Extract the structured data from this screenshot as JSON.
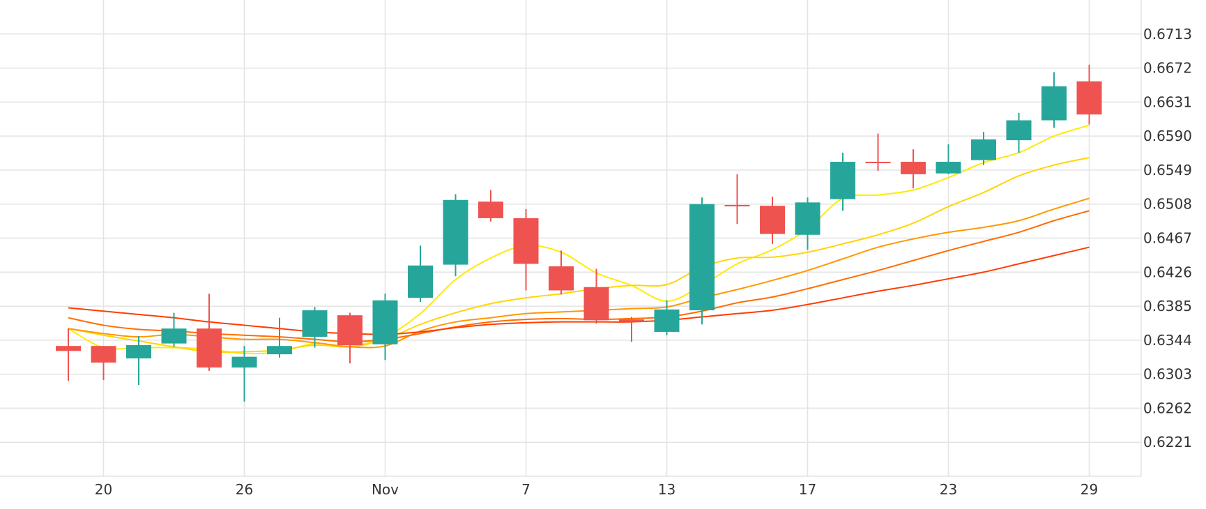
{
  "chart_data": {
    "type": "candlestick",
    "title": "",
    "xlabel": "",
    "ylabel": "",
    "ylim": [
      0.618,
      0.6754
    ],
    "grid": true,
    "y_ticks": [
      0.6221,
      0.6262,
      0.6303,
      0.6344,
      0.6385,
      0.6426,
      0.6467,
      0.6508,
      0.6549,
      0.659,
      0.6631,
      0.6672,
      0.6713
    ],
    "y_tick_labels": [
      "0.6221",
      "0.6262",
      "0.6303",
      "0.6344",
      "0.6385",
      "0.6426",
      "0.6467",
      "0.6508",
      "0.6549",
      "0.6590",
      "0.6631",
      "0.6672",
      "0.6713"
    ],
    "x_ticks": [
      {
        "label": "20",
        "index": 1
      },
      {
        "label": "26",
        "index": 5
      },
      {
        "label": "Nov",
        "index": 9
      },
      {
        "label": "7",
        "index": 13
      },
      {
        "label": "13",
        "index": 17
      },
      {
        "label": "17",
        "index": 21
      },
      {
        "label": "23",
        "index": 25
      },
      {
        "label": "29",
        "index": 29
      }
    ],
    "colors": {
      "up": "#26a69a",
      "down": "#ef5350",
      "grid": "#e3e3e3",
      "text": "#333333"
    },
    "candles": [
      {
        "o": 0.6337,
        "h": 0.6358,
        "l": 0.6295,
        "c": 0.6331
      },
      {
        "o": 0.6337,
        "h": 0.6337,
        "l": 0.6296,
        "c": 0.6317
      },
      {
        "o": 0.6322,
        "h": 0.6349,
        "l": 0.629,
        "c": 0.6338
      },
      {
        "o": 0.634,
        "h": 0.6377,
        "l": 0.6336,
        "c": 0.6358
      },
      {
        "o": 0.6358,
        "h": 0.64,
        "l": 0.6307,
        "c": 0.6311
      },
      {
        "o": 0.6311,
        "h": 0.6337,
        "l": 0.627,
        "c": 0.6324
      },
      {
        "o": 0.6327,
        "h": 0.6371,
        "l": 0.6323,
        "c": 0.6337
      },
      {
        "o": 0.6348,
        "h": 0.6384,
        "l": 0.6335,
        "c": 0.638
      },
      {
        "o": 0.6374,
        "h": 0.6377,
        "l": 0.6316,
        "c": 0.6338
      },
      {
        "o": 0.6339,
        "h": 0.64,
        "l": 0.632,
        "c": 0.6392
      },
      {
        "o": 0.6395,
        "h": 0.6458,
        "l": 0.639,
        "c": 0.6434
      },
      {
        "o": 0.6435,
        "h": 0.652,
        "l": 0.6421,
        "c": 0.6513
      },
      {
        "o": 0.6511,
        "h": 0.6525,
        "l": 0.6487,
        "c": 0.6491
      },
      {
        "o": 0.6491,
        "h": 0.6502,
        "l": 0.6404,
        "c": 0.6436
      },
      {
        "o": 0.6433,
        "h": 0.6452,
        "l": 0.6399,
        "c": 0.6404
      },
      {
        "o": 0.6408,
        "h": 0.643,
        "l": 0.6364,
        "c": 0.6368
      },
      {
        "o": 0.6369,
        "h": 0.6372,
        "l": 0.6342,
        "c": 0.6366
      },
      {
        "o": 0.6354,
        "h": 0.6392,
        "l": 0.635,
        "c": 0.6381
      },
      {
        "o": 0.638,
        "h": 0.6516,
        "l": 0.6363,
        "c": 0.6508
      },
      {
        "o": 0.6507,
        "h": 0.6544,
        "l": 0.6484,
        "c": 0.6506
      },
      {
        "o": 0.6506,
        "h": 0.6517,
        "l": 0.646,
        "c": 0.6472
      },
      {
        "o": 0.6471,
        "h": 0.6516,
        "l": 0.6453,
        "c": 0.651
      },
      {
        "o": 0.6514,
        "h": 0.657,
        "l": 0.65,
        "c": 0.6559
      },
      {
        "o": 0.6559,
        "h": 0.6593,
        "l": 0.6548,
        "c": 0.6558
      },
      {
        "o": 0.6559,
        "h": 0.6574,
        "l": 0.6527,
        "c": 0.6544
      },
      {
        "o": 0.6545,
        "h": 0.658,
        "l": 0.6544,
        "c": 0.6559
      },
      {
        "o": 0.6561,
        "h": 0.6595,
        "l": 0.6555,
        "c": 0.6586
      },
      {
        "o": 0.6585,
        "h": 0.6618,
        "l": 0.657,
        "c": 0.6609
      },
      {
        "o": 0.6609,
        "h": 0.6667,
        "l": 0.66,
        "c": 0.665
      },
      {
        "o": 0.6656,
        "h": 0.6676,
        "l": 0.6604,
        "c": 0.6616
      }
    ],
    "series": [
      {
        "color": "#ffea00",
        "values": [
          0.6358,
          0.6335,
          0.6335,
          0.6335,
          0.6333,
          0.6328,
          0.633,
          0.634,
          0.6337,
          0.6348,
          0.6376,
          0.6417,
          0.6443,
          0.6458,
          0.645,
          0.6425,
          0.641,
          0.6391,
          0.641,
          0.6436,
          0.6453,
          0.6478,
          0.6515,
          0.6519,
          0.6525,
          0.654,
          0.6558,
          0.657,
          0.659,
          0.6603
        ]
      },
      {
        "color": "#ffd600",
        "values": [
          0.6358,
          0.635,
          0.6343,
          0.6336,
          0.633,
          0.633,
          0.6332,
          0.6338,
          0.6336,
          0.6345,
          0.6363,
          0.6377,
          0.6388,
          0.6395,
          0.64,
          0.6406,
          0.641,
          0.6411,
          0.6432,
          0.6443,
          0.6444,
          0.645,
          0.646,
          0.6471,
          0.6485,
          0.6505,
          0.6522,
          0.6542,
          0.6555,
          0.6564
        ]
      },
      {
        "color": "#ff9800",
        "values": [
          0.6358,
          0.6352,
          0.6348,
          0.6351,
          0.6348,
          0.6345,
          0.6345,
          0.6341,
          0.6336,
          0.6337,
          0.6355,
          0.6366,
          0.6371,
          0.6376,
          0.6378,
          0.638,
          0.6382,
          0.6384,
          0.6395,
          0.6405,
          0.6416,
          0.6428,
          0.6442,
          0.6456,
          0.6466,
          0.6474,
          0.648,
          0.6488,
          0.6502,
          0.6515
        ]
      },
      {
        "color": "#ff6d00",
        "values": [
          0.6371,
          0.6362,
          0.6357,
          0.6355,
          0.6352,
          0.635,
          0.6348,
          0.6345,
          0.6342,
          0.6345,
          0.6352,
          0.636,
          0.6366,
          0.6369,
          0.637,
          0.6369,
          0.637,
          0.6372,
          0.6379,
          0.6389,
          0.6396,
          0.6406,
          0.6417,
          0.6428,
          0.644,
          0.6452,
          0.6463,
          0.6474,
          0.6488,
          0.65
        ]
      },
      {
        "color": "#ff3d00",
        "values": [
          0.6383,
          0.6379,
          0.6375,
          0.6371,
          0.6366,
          0.6362,
          0.6358,
          0.6354,
          0.6352,
          0.6351,
          0.6354,
          0.6359,
          0.6363,
          0.6365,
          0.6366,
          0.6366,
          0.6366,
          0.6368,
          0.6372,
          0.6376,
          0.638,
          0.6387,
          0.6395,
          0.6403,
          0.641,
          0.6418,
          0.6426,
          0.6436,
          0.6446,
          0.6456
        ]
      }
    ]
  }
}
